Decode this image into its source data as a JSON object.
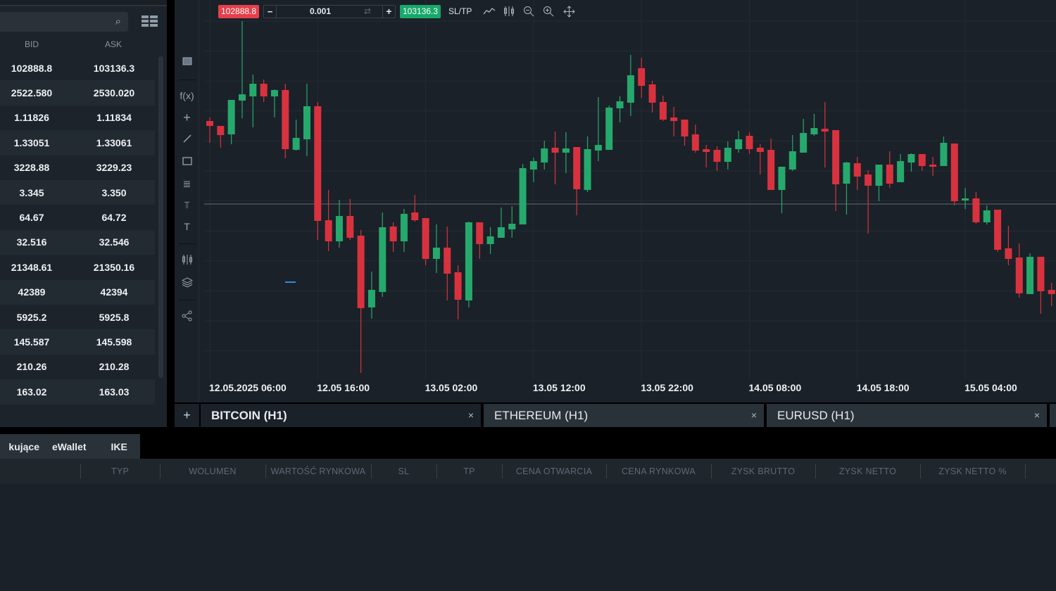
{
  "watchlist": {
    "columns": {
      "bid": "BID",
      "ask": "ASK"
    },
    "rows": [
      {
        "bid": "102888.8",
        "ask": "103136.3"
      },
      {
        "bid": "2522.580",
        "ask": "2530.020"
      },
      {
        "bid": "1.11826",
        "ask": "1.11834"
      },
      {
        "bid": "1.33051",
        "ask": "1.33061"
      },
      {
        "bid": "3228.88",
        "ask": "3229.23"
      },
      {
        "bid": "3.345",
        "ask": "3.350"
      },
      {
        "bid": "64.67",
        "ask": "64.72"
      },
      {
        "bid": "32.516",
        "ask": "32.546"
      },
      {
        "bid": "21348.61",
        "ask": "21350.16"
      },
      {
        "bid": "42389",
        "ask": "42394"
      },
      {
        "bid": "5925.2",
        "ask": "5925.8"
      },
      {
        "bid": "145.587",
        "ask": "145.598"
      },
      {
        "bid": "210.26",
        "ask": "210.28"
      },
      {
        "bid": "163.02",
        "ask": "163.03"
      }
    ]
  },
  "order_bar": {
    "sell_price": "102888.8",
    "minus": "−",
    "quantity": "0.001",
    "plus": "+",
    "buy_price": "103136.3",
    "sltp": "SL/TP"
  },
  "toolbar": {
    "fx_label": "f(x)",
    "text_tool": "T"
  },
  "colors": {
    "up": "#26a96c",
    "down": "#d9323f",
    "sell": "#e5404b",
    "buy": "#17a86b",
    "bg": "#1b2128"
  },
  "chart_data": {
    "type": "candlestick",
    "title": "BITCOIN (H1)",
    "x_tick_labels": [
      "12.05.2025 06:00",
      "12.05 16:00",
      "13.05 02:00",
      "13.05 12:00",
      "13.05 22:00",
      "14.05 08:00",
      "14.05 18:00",
      "15.05 04:00"
    ],
    "x_tick_every": 10,
    "ylim": [
      100388.8,
      105788.8
    ],
    "grid": true,
    "bid_line": 102888.8,
    "ohlc": [
      [
        104069,
        104119,
        103759,
        103999
      ],
      [
        103999,
        103999,
        103689,
        103869
      ],
      [
        103879,
        104369,
        103739,
        104369
      ],
      [
        104359,
        105489,
        104109,
        104449
      ],
      [
        104419,
        104729,
        103979,
        104599
      ],
      [
        104599,
        104659,
        104339,
        104419
      ],
      [
        104419,
        104519,
        104119,
        104509
      ],
      [
        104509,
        104599,
        103539,
        103669
      ],
      [
        103659,
        104089,
        103649,
        103829
      ],
      [
        103809,
        104599,
        103569,
        104279
      ],
      [
        104279,
        104339,
        102379,
        102649
      ],
      [
        102659,
        103089,
        102219,
        102359
      ],
      [
        102359,
        102949,
        102269,
        102719
      ],
      [
        102719,
        102959,
        102379,
        102409
      ],
      [
        102439,
        102519,
        100489,
        101409
      ],
      [
        101419,
        101929,
        101259,
        101669
      ],
      [
        101639,
        102769,
        101569,
        102559
      ],
      [
        102569,
        102629,
        102209,
        102359
      ],
      [
        102359,
        102819,
        102209,
        102749
      ],
      [
        102769,
        103019,
        102639,
        102659
      ],
      [
        102689,
        102689,
        102019,
        102109
      ],
      [
        102109,
        102599,
        101909,
        102269
      ],
      [
        102269,
        102569,
        101519,
        101899
      ],
      [
        101919,
        102019,
        101249,
        101529
      ],
      [
        101519,
        102639,
        101419,
        102629
      ],
      [
        102629,
        102629,
        102109,
        102319
      ],
      [
        102319,
        102559,
        102179,
        102429
      ],
      [
        102409,
        102839,
        102409,
        102559
      ],
      [
        102529,
        102859,
        102409,
        102609
      ],
      [
        102599,
        103459,
        102599,
        103399
      ],
      [
        103379,
        103549,
        103199,
        103499
      ],
      [
        103479,
        103789,
        103379,
        103679
      ],
      [
        103689,
        103919,
        103169,
        103619
      ],
      [
        103619,
        103909,
        103329,
        103679
      ],
      [
        103699,
        103699,
        102729,
        103099
      ],
      [
        103089,
        103849,
        103059,
        103669
      ],
      [
        103649,
        104409,
        103499,
        103729
      ],
      [
        103659,
        104289,
        103659,
        104259
      ],
      [
        104249,
        104419,
        104049,
        104349
      ],
      [
        104329,
        105009,
        104139,
        104719
      ],
      [
        104819,
        104969,
        104399,
        104569
      ],
      [
        104589,
        104639,
        104189,
        104329
      ],
      [
        104339,
        104429,
        104069,
        104089
      ],
      [
        104119,
        104269,
        103849,
        104069
      ],
      [
        104089,
        104089,
        103719,
        103849
      ],
      [
        103879,
        104019,
        103619,
        103649
      ],
      [
        103669,
        103729,
        103409,
        103629
      ],
      [
        103659,
        103709,
        103359,
        103489
      ],
      [
        103489,
        103779,
        103379,
        103689
      ],
      [
        103669,
        103929,
        103619,
        103809
      ],
      [
        103859,
        103909,
        103599,
        103669
      ],
      [
        103689,
        103739,
        103309,
        103629
      ],
      [
        103659,
        103819,
        103089,
        103089
      ],
      [
        103089,
        103419,
        102759,
        103419
      ],
      [
        103379,
        103869,
        103359,
        103639
      ],
      [
        103619,
        104099,
        103619,
        103899
      ],
      [
        103879,
        104169,
        103859,
        103969
      ],
      [
        103959,
        104339,
        103409,
        103919
      ],
      [
        103939,
        103939,
        102789,
        103169
      ],
      [
        103179,
        103489,
        102739,
        103479
      ],
      [
        103469,
        103559,
        103089,
        103279
      ],
      [
        103309,
        103369,
        102469,
        103149
      ],
      [
        103149,
        103449,
        102929,
        103449
      ],
      [
        103449,
        103639,
        103119,
        103179
      ],
      [
        103199,
        103599,
        103199,
        103499
      ],
      [
        103479,
        103609,
        103349,
        103599
      ],
      [
        103599,
        103599,
        103359,
        103429
      ],
      [
        103449,
        103559,
        103289,
        103419
      ],
      [
        103429,
        103849,
        103429,
        103759
      ],
      [
        103749,
        103749,
        102869,
        102929
      ],
      [
        102939,
        103119,
        102819,
        102969
      ],
      [
        102969,
        103059,
        102609,
        102629
      ],
      [
        102629,
        102869,
        102599,
        102799
      ],
      [
        102809,
        102809,
        102209,
        102239
      ],
      [
        102259,
        102579,
        102019,
        102109
      ],
      [
        102129,
        102329,
        101559,
        101619
      ],
      [
        101609,
        102189,
        101609,
        102139
      ],
      [
        102139,
        102139,
        101329,
        101649
      ],
      [
        101669,
        101769,
        101439,
        101609
      ]
    ]
  },
  "chart_tabs": [
    {
      "label": "BITCOIN (H1)",
      "close": "×"
    },
    {
      "label": "ETHEREUM (H1)",
      "close": "×"
    },
    {
      "label": "EURUSD (H1)",
      "close": "×"
    }
  ],
  "add_tab": "+",
  "bottom_tabs": [
    "kujące",
    "eWallet",
    "IKE"
  ],
  "positions_table": {
    "headers": [
      "TYP",
      "WOLUMEN",
      "WARTOŚĆ RYNKOWA",
      "SL",
      "TP",
      "CENA OTWARCIA",
      "CENA RYNKOWA",
      "ZYSK BRUTTO",
      "ZYSK NETTO",
      "ZYSK NETTO %"
    ]
  }
}
